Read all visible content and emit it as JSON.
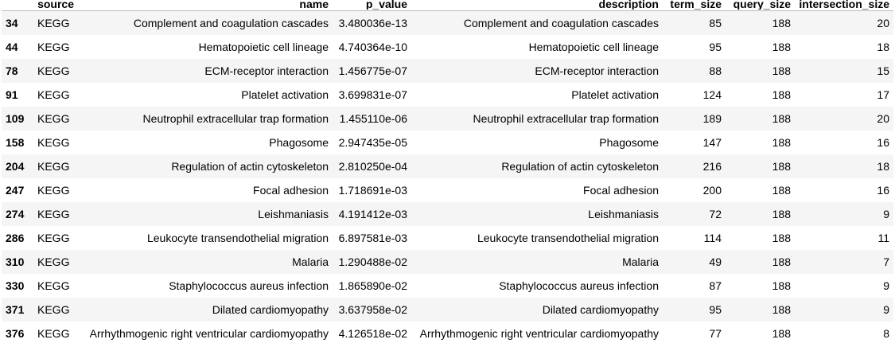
{
  "columns": {
    "index": "",
    "source": "source",
    "name": "name",
    "p_value": "p_value",
    "description": "description",
    "term_size": "term_size",
    "query_size": "query_size",
    "intersection_size": "intersection_size"
  },
  "rows": [
    {
      "index": "34",
      "source": "KEGG",
      "name": "Complement and coagulation cascades",
      "p_value": "3.480036e-13",
      "description": "Complement and coagulation cascades",
      "term_size": "85",
      "query_size": "188",
      "intersection_size": "20"
    },
    {
      "index": "44",
      "source": "KEGG",
      "name": "Hematopoietic cell lineage",
      "p_value": "4.740364e-10",
      "description": "Hematopoietic cell lineage",
      "term_size": "95",
      "query_size": "188",
      "intersection_size": "18"
    },
    {
      "index": "78",
      "source": "KEGG",
      "name": "ECM-receptor interaction",
      "p_value": "1.456775e-07",
      "description": "ECM-receptor interaction",
      "term_size": "88",
      "query_size": "188",
      "intersection_size": "15"
    },
    {
      "index": "91",
      "source": "KEGG",
      "name": "Platelet activation",
      "p_value": "3.699831e-07",
      "description": "Platelet activation",
      "term_size": "124",
      "query_size": "188",
      "intersection_size": "17"
    },
    {
      "index": "109",
      "source": "KEGG",
      "name": "Neutrophil extracellular trap formation",
      "p_value": "1.455110e-06",
      "description": "Neutrophil extracellular trap formation",
      "term_size": "189",
      "query_size": "188",
      "intersection_size": "20"
    },
    {
      "index": "158",
      "source": "KEGG",
      "name": "Phagosome",
      "p_value": "2.947435e-05",
      "description": "Phagosome",
      "term_size": "147",
      "query_size": "188",
      "intersection_size": "16"
    },
    {
      "index": "204",
      "source": "KEGG",
      "name": "Regulation of actin cytoskeleton",
      "p_value": "2.810250e-04",
      "description": "Regulation of actin cytoskeleton",
      "term_size": "216",
      "query_size": "188",
      "intersection_size": "18"
    },
    {
      "index": "247",
      "source": "KEGG",
      "name": "Focal adhesion",
      "p_value": "1.718691e-03",
      "description": "Focal adhesion",
      "term_size": "200",
      "query_size": "188",
      "intersection_size": "16"
    },
    {
      "index": "274",
      "source": "KEGG",
      "name": "Leishmaniasis",
      "p_value": "4.191412e-03",
      "description": "Leishmaniasis",
      "term_size": "72",
      "query_size": "188",
      "intersection_size": "9"
    },
    {
      "index": "286",
      "source": "KEGG",
      "name": "Leukocyte transendothelial migration",
      "p_value": "6.897581e-03",
      "description": "Leukocyte transendothelial migration",
      "term_size": "114",
      "query_size": "188",
      "intersection_size": "11"
    },
    {
      "index": "310",
      "source": "KEGG",
      "name": "Malaria",
      "p_value": "1.290488e-02",
      "description": "Malaria",
      "term_size": "49",
      "query_size": "188",
      "intersection_size": "7"
    },
    {
      "index": "330",
      "source": "KEGG",
      "name": "Staphylococcus aureus infection",
      "p_value": "1.865890e-02",
      "description": "Staphylococcus aureus infection",
      "term_size": "87",
      "query_size": "188",
      "intersection_size": "9"
    },
    {
      "index": "371",
      "source": "KEGG",
      "name": "Dilated cardiomyopathy",
      "p_value": "3.637958e-02",
      "description": "Dilated cardiomyopathy",
      "term_size": "95",
      "query_size": "188",
      "intersection_size": "9"
    },
    {
      "index": "376",
      "source": "KEGG",
      "name": "Arrhythmogenic right ventricular cardiomyopathy",
      "p_value": "4.126518e-02",
      "description": "Arrhythmogenic right ventricular cardiomyopathy",
      "term_size": "77",
      "query_size": "188",
      "intersection_size": "8"
    }
  ]
}
